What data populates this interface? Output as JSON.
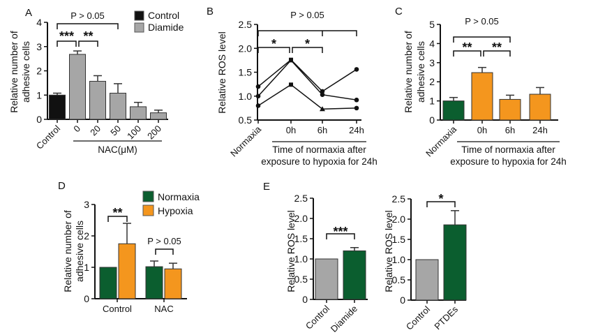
{
  "colors": {
    "control_black": "#111111",
    "gray": "#a6a6a6",
    "green": "#0b5e2f",
    "orange": "#f4961e"
  },
  "chart_data": [
    {
      "panel": "A",
      "type": "bar",
      "ylabel": [
        "Relative number of",
        "adhesive cells"
      ],
      "ylim": [
        0,
        4
      ],
      "yticks": [
        "0",
        "1",
        "2",
        "3",
        "4"
      ],
      "categories": [
        "Control",
        "0",
        "20",
        "50",
        "100",
        "200"
      ],
      "values": [
        1.0,
        2.68,
        1.57,
        1.08,
        0.52,
        0.27
      ],
      "error_upper": [
        1.08,
        2.82,
        1.8,
        1.47,
        0.7,
        0.38
      ],
      "bar_colors": [
        "#111111",
        "#a6a6a6",
        "#a6a6a6",
        "#a6a6a6",
        "#a6a6a6",
        "#a6a6a6"
      ],
      "group_label": "NAC(μM)",
      "legend": [
        {
          "label": "Control",
          "color": "#111111"
        },
        {
          "label": "Diamide",
          "color": "#a6a6a6"
        }
      ],
      "legend_placement": "top-right",
      "annotations": [
        {
          "from": 0,
          "to": 3,
          "label": "P > 0.05"
        },
        {
          "from": 0,
          "to": 1,
          "label": "***"
        },
        {
          "from": 1,
          "to": 2,
          "label": "**"
        }
      ]
    },
    {
      "panel": "B",
      "type": "line",
      "ylabel": [
        "Relative ROS level"
      ],
      "ylim": [
        0.5,
        2.5
      ],
      "yticks": [
        "0.5",
        "1.0",
        "1.5",
        "2.0",
        "2.5"
      ],
      "categories": [
        "Normaxia",
        "0h",
        "6h",
        "24h"
      ],
      "series": [
        {
          "values": [
            1.2,
            1.76,
            1.1,
            1.56
          ]
        },
        {
          "values": [
            1.0,
            1.75,
            1.03,
            0.92
          ]
        },
        {
          "values": [
            0.8,
            1.24,
            0.73,
            0.75
          ]
        }
      ],
      "group_label": [
        "Time of normaxia after",
        "exposure to hypoxia for 24h"
      ],
      "annotations": [
        {
          "from": 0,
          "to": 3,
          "mid": 2,
          "label": "P > 0.05"
        },
        {
          "from": 0,
          "to": 1,
          "label": "*"
        },
        {
          "from": 1,
          "to": 2,
          "label": "*"
        }
      ]
    },
    {
      "panel": "C",
      "type": "bar",
      "ylabel": [
        "Relative number of",
        "adhesive cells"
      ],
      "ylim": [
        0,
        5
      ],
      "yticks": [
        "0",
        "1",
        "2",
        "3",
        "4",
        "5"
      ],
      "categories": [
        "Normaxia",
        "0h",
        "6h",
        "24h"
      ],
      "values": [
        1.0,
        2.48,
        1.08,
        1.35
      ],
      "error_upper": [
        1.18,
        2.75,
        1.3,
        1.7
      ],
      "bar_colors": [
        "#0b5e2f",
        "#f4961e",
        "#f4961e",
        "#f4961e"
      ],
      "group_label": [
        "Time of normaxia after",
        "exposure to hypoxia for 24h"
      ],
      "annotations": [
        {
          "from": 0,
          "to": 2,
          "label": "P > 0.05"
        },
        {
          "from": 0,
          "to": 1,
          "label": "**"
        },
        {
          "from": 1,
          "to": 2,
          "label": "**"
        }
      ]
    },
    {
      "panel": "D",
      "type": "bar",
      "ylabel": [
        "Relative number of",
        "adhesive cells"
      ],
      "ylim": [
        0,
        3
      ],
      "yticks": [
        "0",
        "1",
        "2",
        "3"
      ],
      "categories": [
        "Control",
        "NAC"
      ],
      "series": [
        {
          "name": "Normaxia",
          "color": "#0b5e2f",
          "values": [
            1.0,
            1.02
          ],
          "error_upper": [
            1.0,
            1.2
          ]
        },
        {
          "name": "Hypoxia",
          "color": "#f4961e",
          "values": [
            1.75,
            0.95
          ],
          "error_upper": [
            2.4,
            1.13
          ]
        }
      ],
      "legend_placement": "top-right",
      "annotations": [
        {
          "from": 0,
          "to": 1,
          "label": "**"
        },
        {
          "from": 2,
          "to": 3,
          "label": "P > 0.05"
        }
      ]
    },
    {
      "panel": "E",
      "type": "bar",
      "ylabel": [
        "Relative ROS level"
      ],
      "ylim": [
        0,
        2.5
      ],
      "yticks": [
        "0",
        "0.5",
        "1.0",
        "1.5",
        "2.0",
        "2.5"
      ],
      "categories": [
        "Control",
        "Diamide"
      ],
      "values": [
        1.0,
        1.2
      ],
      "error_upper": [
        1.0,
        1.28
      ],
      "bar_colors": [
        "#a6a6a6",
        "#0b5e2f"
      ],
      "annotations": [
        {
          "from": 0,
          "to": 1,
          "label": "***"
        }
      ]
    },
    {
      "panel": "",
      "type": "bar",
      "ylabel": [
        "Relative ROS level"
      ],
      "ylim": [
        0,
        2.5
      ],
      "yticks": [
        "0",
        "0.5",
        "1.0",
        "1.5",
        "2.0",
        "2.5"
      ],
      "categories": [
        "Control",
        "PTDEs"
      ],
      "values": [
        1.0,
        1.86
      ],
      "error_upper": [
        1.0,
        2.21
      ],
      "bar_colors": [
        "#a6a6a6",
        "#0b5e2f"
      ],
      "annotations": [
        {
          "from": 0,
          "to": 1,
          "label": "*"
        }
      ]
    }
  ]
}
